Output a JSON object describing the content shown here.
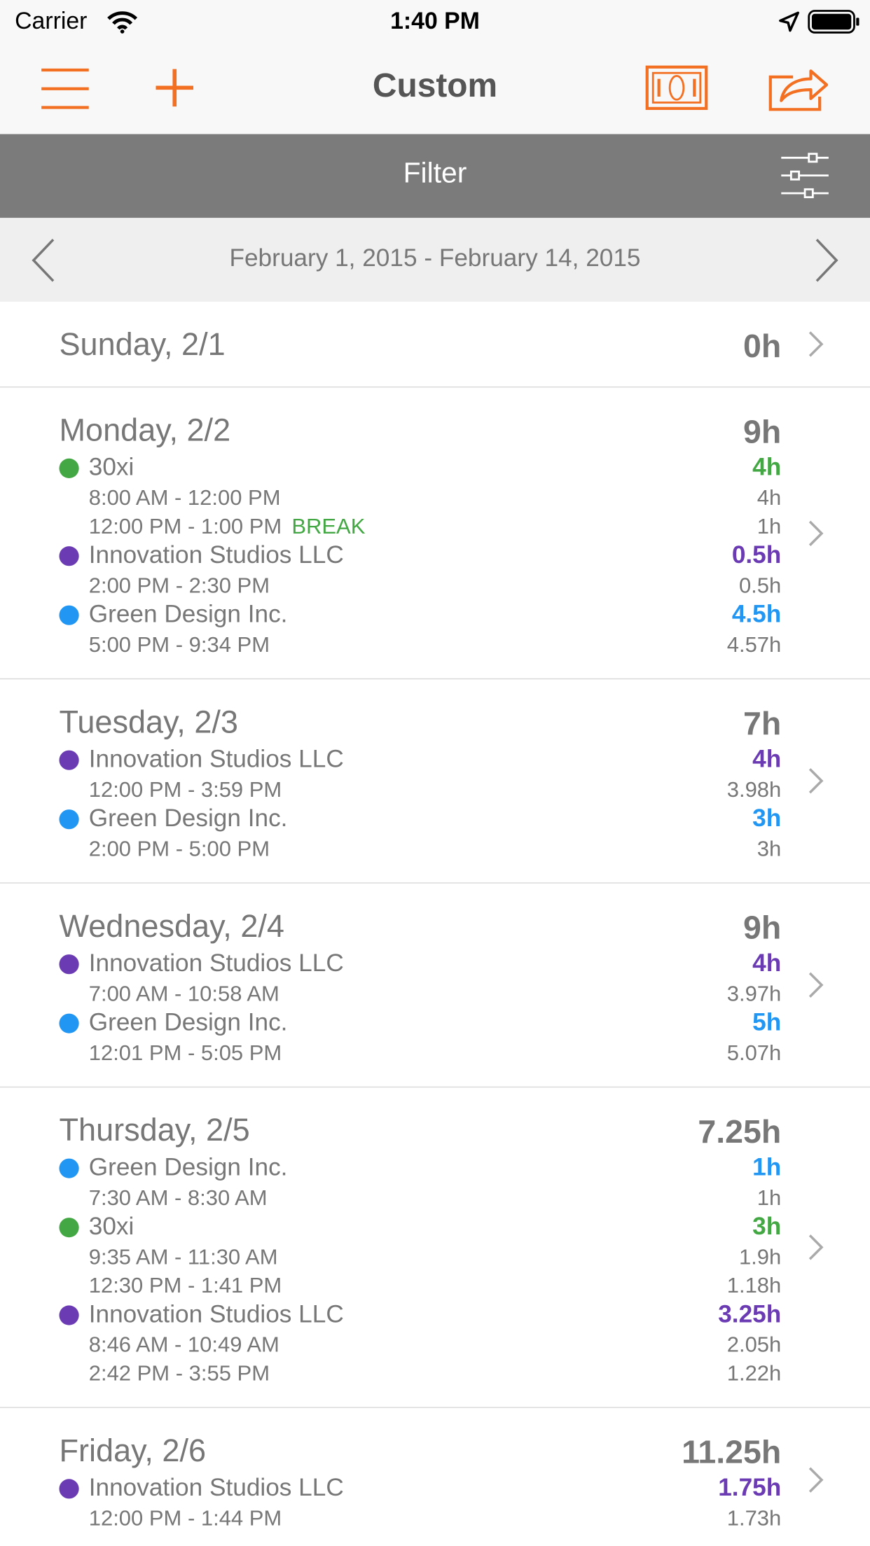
{
  "status_bar": {
    "carrier": "Carrier",
    "time": "1:40 PM"
  },
  "nav": {
    "title": "Custom"
  },
  "filter": {
    "label": "Filter"
  },
  "date_range": {
    "label": "February 1, 2015 - February 14, 2015"
  },
  "days": [
    {
      "label": "Sunday, 2/1",
      "total": "0h",
      "entries": []
    },
    {
      "label": "Monday, 2/2",
      "total": "9h",
      "entries": [
        {
          "client": "30xi",
          "color": "#43a843",
          "hours": "4h",
          "times": [
            {
              "range": "8:00 AM - 12:00 PM",
              "hours": "4h"
            },
            {
              "range": "12:00 PM - 1:00 PM",
              "hours": "1h",
              "tag": "BREAK"
            }
          ]
        },
        {
          "client": "Innovation Studios LLC",
          "color": "#6b3bb4",
          "hours": "0.5h",
          "times": [
            {
              "range": "2:00 PM - 2:30 PM",
              "hours": "0.5h"
            }
          ]
        },
        {
          "client": "Green Design Inc.",
          "color": "#2196f3",
          "hours": "4.5h",
          "times": [
            {
              "range": "5:00 PM - 9:34 PM",
              "hours": "4.57h"
            }
          ]
        }
      ]
    },
    {
      "label": "Tuesday, 2/3",
      "total": "7h",
      "entries": [
        {
          "client": "Innovation Studios LLC",
          "color": "#6b3bb4",
          "hours": "4h",
          "times": [
            {
              "range": "12:00 PM - 3:59 PM",
              "hours": "3.98h"
            }
          ]
        },
        {
          "client": "Green Design Inc.",
          "color": "#2196f3",
          "hours": "3h",
          "times": [
            {
              "range": "2:00 PM - 5:00 PM",
              "hours": "3h"
            }
          ]
        }
      ]
    },
    {
      "label": "Wednesday, 2/4",
      "total": "9h",
      "entries": [
        {
          "client": "Innovation Studios LLC",
          "color": "#6b3bb4",
          "hours": "4h",
          "times": [
            {
              "range": "7:00 AM - 10:58 AM",
              "hours": "3.97h"
            }
          ]
        },
        {
          "client": "Green Design Inc.",
          "color": "#2196f3",
          "hours": "5h",
          "times": [
            {
              "range": "12:01 PM - 5:05 PM",
              "hours": "5.07h"
            }
          ]
        }
      ]
    },
    {
      "label": "Thursday, 2/5",
      "total": "7.25h",
      "entries": [
        {
          "client": "Green Design Inc.",
          "color": "#2196f3",
          "hours": "1h",
          "times": [
            {
              "range": "7:30 AM - 8:30 AM",
              "hours": "1h"
            }
          ]
        },
        {
          "client": "30xi",
          "color": "#43a843",
          "hours": "3h",
          "times": [
            {
              "range": "9:35 AM - 11:30 AM",
              "hours": "1.9h"
            },
            {
              "range": "12:30 PM - 1:41 PM",
              "hours": "1.18h"
            }
          ]
        },
        {
          "client": "Innovation Studios LLC",
          "color": "#6b3bb4",
          "hours": "3.25h",
          "times": [
            {
              "range": "8:46 AM - 10:49 AM",
              "hours": "2.05h"
            },
            {
              "range": "2:42 PM - 3:55 PM",
              "hours": "1.22h"
            }
          ]
        }
      ]
    },
    {
      "label": "Friday, 2/6",
      "total": "11.25h",
      "entries": [
        {
          "client": "Innovation Studios LLC",
          "color": "#6b3bb4",
          "hours": "1.75h",
          "times": [
            {
              "range": "12:00 PM - 1:44 PM",
              "hours": "1.73h"
            }
          ]
        }
      ]
    }
  ]
}
